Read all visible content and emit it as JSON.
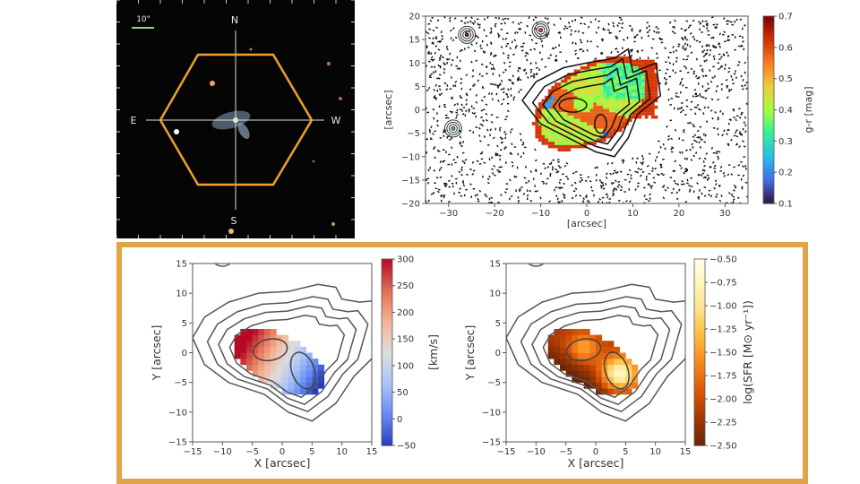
{
  "sky_image": {
    "compass": {
      "north": "N",
      "south": "S",
      "east": "E",
      "west": "W"
    },
    "scale_bar_label": "10\"",
    "hexagon_color": "#f0a030",
    "crosshair_color": "#c8f0c0"
  },
  "frame_color": "#e0a448",
  "chart_data": [
    {
      "type": "heatmap",
      "title": "",
      "xlabel": "[arcsec]",
      "ylabel": "[arcsec]",
      "xlim": [
        -35,
        35
      ],
      "ylim": [
        -20,
        20
      ],
      "xticks": [
        -30,
        -20,
        -10,
        0,
        10,
        20,
        30
      ],
      "yticks": [
        -20,
        -15,
        -10,
        -5,
        0,
        5,
        10,
        15,
        20
      ],
      "colorbar": {
        "label": "g-r [mag]",
        "range": [
          0.1,
          0.7
        ],
        "ticks": [
          0.1,
          0.2,
          0.3,
          0.4,
          0.5,
          0.6,
          0.7
        ],
        "colormap": "turbo"
      },
      "contours": "black"
    },
    {
      "type": "heatmap",
      "title": "",
      "xlabel": "X [arcsec]",
      "ylabel": "Y [arcsec]",
      "xlim": [
        -15,
        15
      ],
      "ylim": [
        -15,
        15
      ],
      "xticks": [
        -15,
        -10,
        -5,
        0,
        5,
        10,
        15
      ],
      "yticks": [
        -15,
        -10,
        -5,
        0,
        5,
        10,
        15
      ],
      "colorbar": {
        "label": "[km/s]",
        "range": [
          -50,
          300
        ],
        "ticks": [
          -50,
          0,
          50,
          100,
          150,
          200,
          250,
          300
        ],
        "colormap": "coolwarm"
      },
      "contours": "gray"
    },
    {
      "type": "heatmap",
      "title": "",
      "xlabel": "X [arcsec]",
      "ylabel": "Y [arcsec]",
      "xlim": [
        -15,
        15
      ],
      "ylim": [
        -15,
        15
      ],
      "xticks": [
        -15,
        -10,
        -5,
        0,
        5,
        10,
        15
      ],
      "yticks": [
        -15,
        -10,
        -5,
        0,
        5,
        10,
        15
      ],
      "colorbar": {
        "label": "log(SFR [M⊙ yr⁻¹])",
        "range": [
          -2.5,
          -0.5
        ],
        "ticks": [
          "-2.50",
          "-2.25",
          "-2.00",
          "-1.75",
          "-1.50",
          "-1.25",
          "-1.00",
          "-0.75",
          "-0.50"
        ],
        "colormap": "YlOrBr_r"
      },
      "contours": "gray"
    }
  ]
}
